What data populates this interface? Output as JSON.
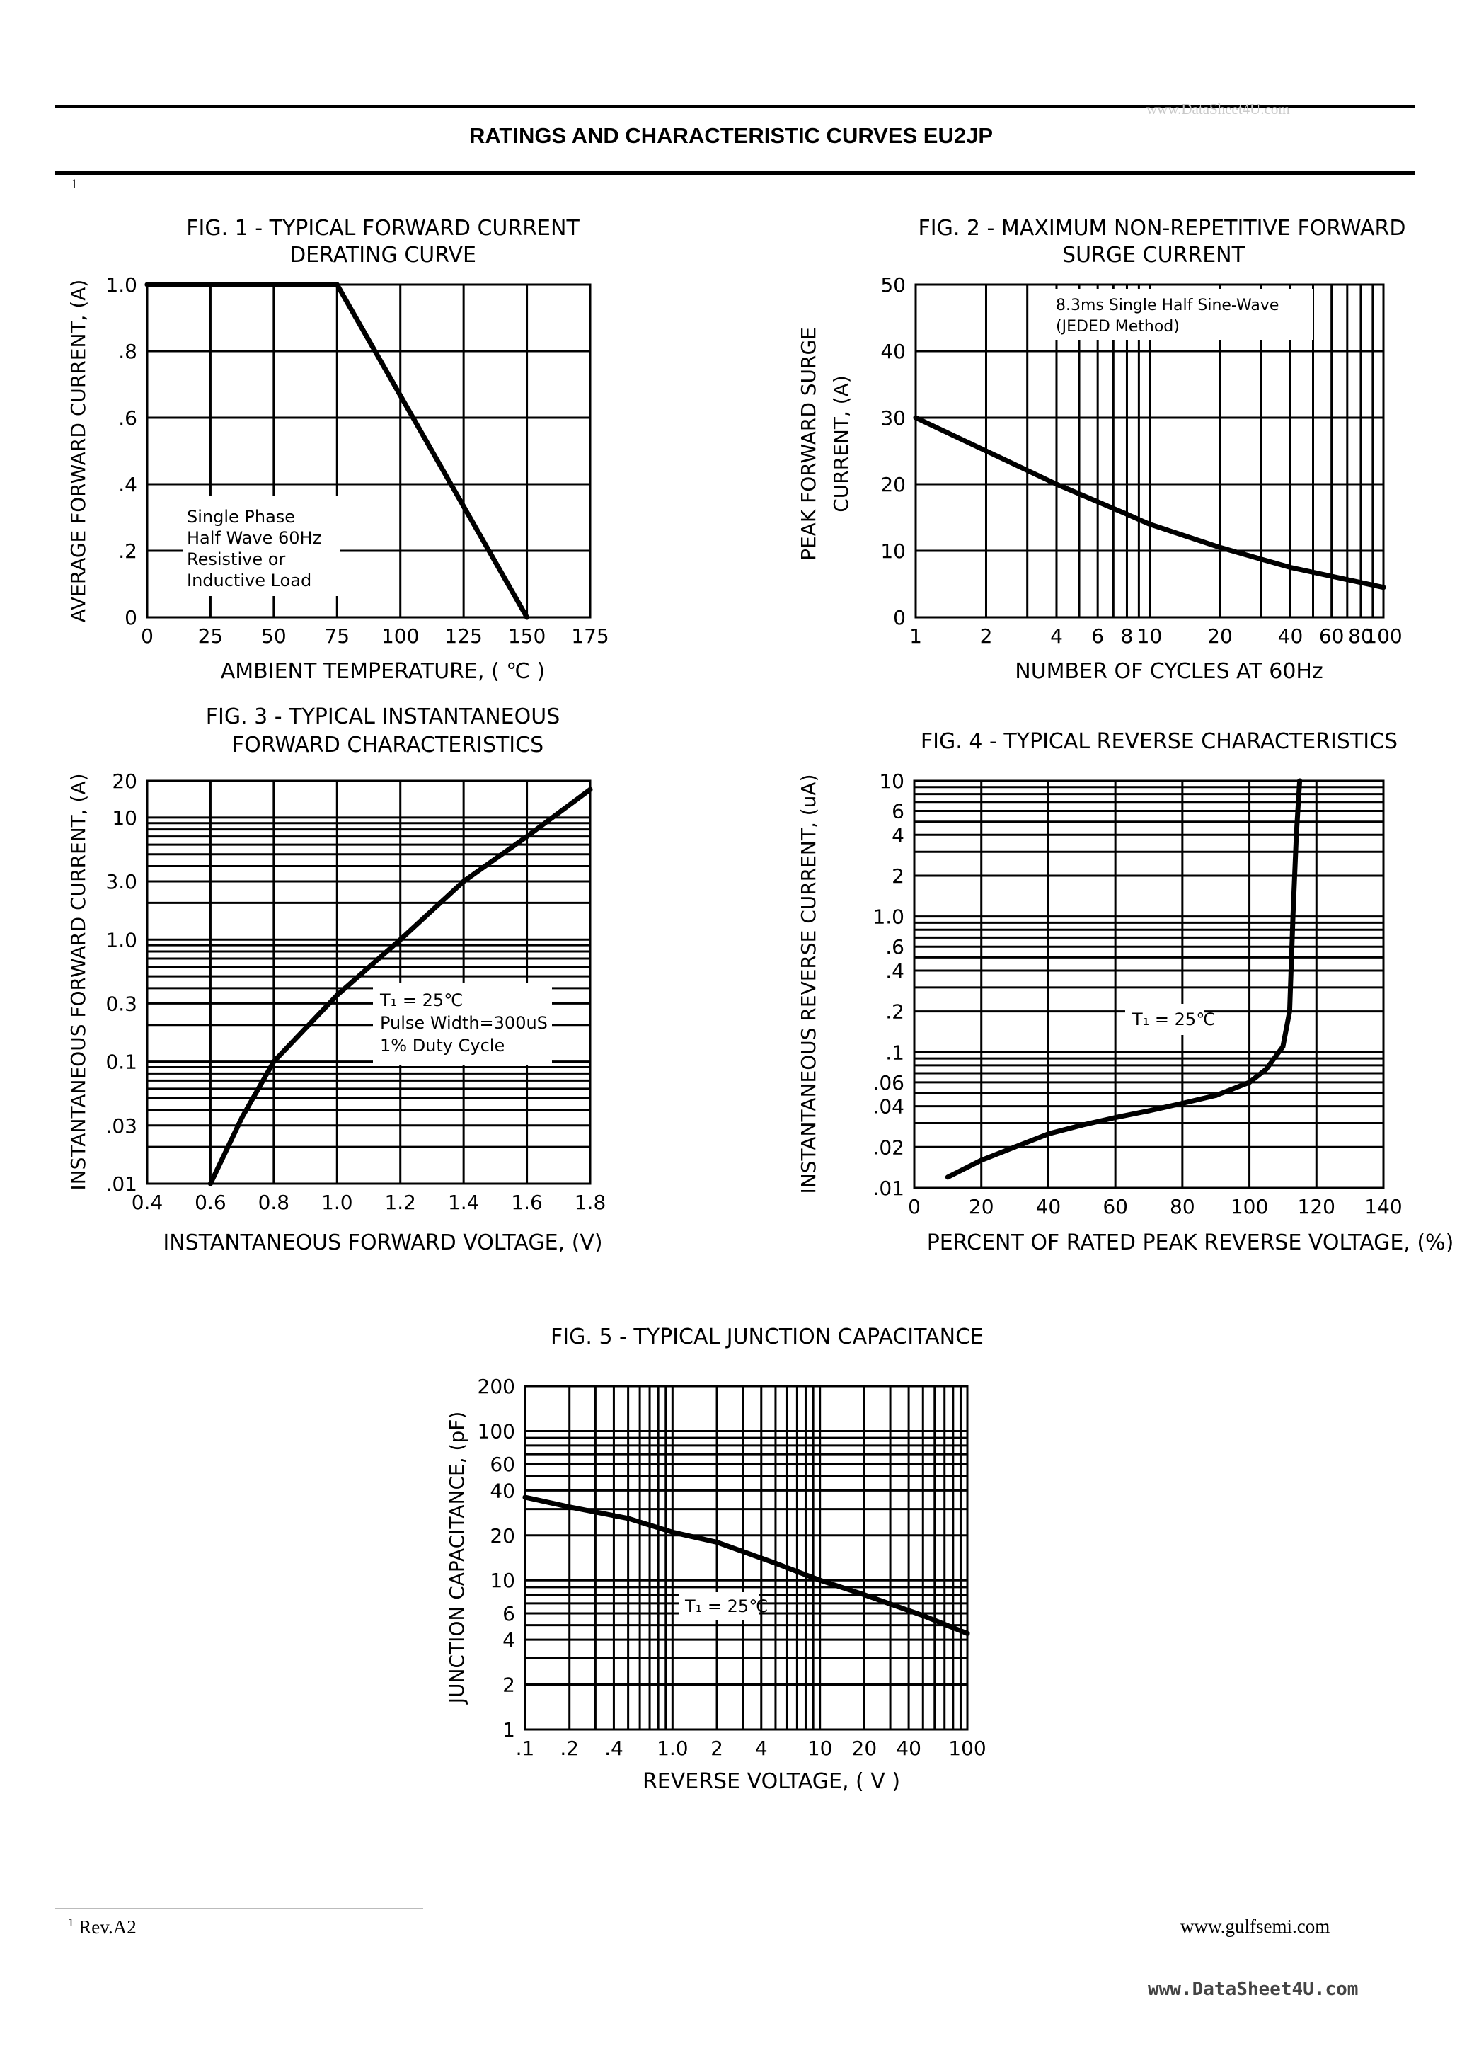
{
  "header": {
    "title": "RATINGS AND CHARACTERISTIC CURVES EU2JP",
    "watermark_top": "www.DataSheet4U.com",
    "superscript_mark": "1"
  },
  "footer": {
    "note_mark": "1",
    "revision": "Rev.A2",
    "website": "www.gulfsemi.com",
    "watermark": "www.DataSheet4U.com"
  },
  "chart_data": [
    {
      "id": "fig1",
      "type": "line",
      "title": "FIG. 1 - TYPICAL FORWARD CURRENT",
      "subtitle": "DERATING CURVE",
      "xlabel": "AMBIENT TEMPERATURE, ( ℃ )",
      "ylabel": "AVERAGE FORWARD CURRENT, (A)",
      "x_scale": "linear",
      "y_scale": "linear",
      "xlim": [
        0,
        175
      ],
      "ylim": [
        0,
        1.0
      ],
      "x_ticks": [
        0,
        25,
        50,
        75,
        100,
        125,
        150,
        175
      ],
      "x_tick_labels": [
        "0",
        "25",
        "50",
        "75",
        "100",
        "125",
        "150",
        "175"
      ],
      "y_ticks": [
        0,
        0.2,
        0.4,
        0.6,
        0.8,
        1.0
      ],
      "y_tick_labels": [
        "0",
        ".2",
        ".4",
        ".6",
        ".8",
        "1.0"
      ],
      "x_grid": [
        0,
        25,
        50,
        75,
        100,
        125,
        150,
        175
      ],
      "y_grid": [
        0,
        0.2,
        0.4,
        0.6,
        0.8,
        1.0
      ],
      "annotation": [
        "Single Phase",
        "Half Wave 60Hz",
        "Resistive or",
        "Inductive Load"
      ],
      "series": [
        {
          "x": [
            0,
            75,
            150
          ],
          "y": [
            1.0,
            1.0,
            0
          ]
        }
      ]
    },
    {
      "id": "fig2",
      "type": "line",
      "title": "FIG. 2 - MAXIMUM NON-REPETITIVE FORWARD",
      "subtitle": "SURGE CURRENT",
      "xlabel": "NUMBER OF CYCLES AT 60Hz",
      "ylabel": "PEAK FORWARD SURGE",
      "ylabel2": "CURRENT, (A)",
      "x_scale": "log",
      "y_scale": "linear",
      "xlim": [
        1,
        100
      ],
      "ylim": [
        0,
        50
      ],
      "x_ticks": [
        1,
        2,
        4,
        6,
        8,
        10,
        20,
        40,
        60,
        80,
        100
      ],
      "x_tick_labels": [
        "1",
        "2",
        "4",
        "6",
        "8",
        "10",
        "20",
        "40",
        "60",
        "80",
        "100"
      ],
      "y_ticks": [
        0,
        10,
        20,
        30,
        40,
        50
      ],
      "y_tick_labels": [
        "0",
        "10",
        "20",
        "30",
        "40",
        "50"
      ],
      "x_grid": [
        1,
        2,
        3,
        4,
        5,
        6,
        7,
        8,
        9,
        10,
        20,
        30,
        40,
        50,
        60,
        70,
        80,
        90,
        100
      ],
      "y_grid": [
        0,
        10,
        20,
        30,
        40,
        50
      ],
      "annotation": [
        "8.3ms Single Half Sine-Wave",
        "(JEDED Method)"
      ],
      "series": [
        {
          "x": [
            1,
            2,
            4,
            8,
            10,
            20,
            40,
            100
          ],
          "y": [
            30,
            25,
            20,
            15.5,
            14,
            10.5,
            7.5,
            4.5
          ]
        }
      ]
    },
    {
      "id": "fig3",
      "type": "line",
      "title": "FIG. 3 - TYPICAL INSTANTANEOUS",
      "subtitle": "FORWARD CHARACTERISTICS",
      "xlabel": "INSTANTANEOUS FORWARD VOLTAGE, (V)",
      "ylabel": "INSTANTANEOUS FORWARD CURRENT, (A)",
      "x_scale": "linear",
      "y_scale": "log",
      "xlim": [
        0.4,
        1.8
      ],
      "ylim": [
        0.01,
        20
      ],
      "x_ticks": [
        0.4,
        0.6,
        0.8,
        1.0,
        1.2,
        1.4,
        1.6,
        1.8
      ],
      "x_tick_labels": [
        "0.4",
        "0.6",
        "0.8",
        "1.0",
        "1.2",
        "1.4",
        "1.6",
        "1.8"
      ],
      "y_ticks": [
        0.01,
        0.03,
        0.1,
        0.3,
        1.0,
        3.0,
        10,
        20
      ],
      "y_tick_labels": [
        ".01",
        ".03",
        "0.1",
        "0.3",
        "1.0",
        "3.0",
        "10",
        "20"
      ],
      "x_grid": [
        0.4,
        0.6,
        0.8,
        1.0,
        1.2,
        1.4,
        1.6,
        1.8
      ],
      "y_grid": [
        0.01,
        0.02,
        0.03,
        0.04,
        0.05,
        0.06,
        0.07,
        0.08,
        0.09,
        0.1,
        0.2,
        0.3,
        0.4,
        0.5,
        0.6,
        0.7,
        0.8,
        0.9,
        1,
        2,
        3,
        4,
        5,
        6,
        7,
        8,
        9,
        10,
        20
      ],
      "annotation": [
        "T₁ = 25℃",
        "Pulse Width=300uS",
        "1% Duty Cycle"
      ],
      "series": [
        {
          "x": [
            0.6,
            0.7,
            0.8,
            1.0,
            1.2,
            1.4,
            1.6,
            1.8
          ],
          "y": [
            0.01,
            0.035,
            0.1,
            0.35,
            1.0,
            3.0,
            7.0,
            17
          ]
        }
      ]
    },
    {
      "id": "fig4",
      "type": "line",
      "title": "FIG. 4 - TYPICAL REVERSE CHARACTERISTICS",
      "xlabel": "PERCENT OF RATED PEAK REVERSE VOLTAGE, (%)",
      "ylabel": "INSTANTANEOUS REVERSE CURRENT, (uA)",
      "x_scale": "linear",
      "y_scale": "log",
      "xlim": [
        0,
        140
      ],
      "ylim": [
        0.01,
        10
      ],
      "x_ticks": [
        0,
        20,
        40,
        60,
        80,
        100,
        120,
        140
      ],
      "x_tick_labels": [
        "0",
        "20",
        "40",
        "60",
        "80",
        "100",
        "120",
        "140"
      ],
      "y_ticks": [
        0.01,
        0.02,
        0.04,
        0.06,
        0.1,
        0.2,
        0.4,
        0.6,
        1.0,
        2,
        4,
        6,
        10
      ],
      "y_tick_labels": [
        ".01",
        ".02",
        ".04",
        ".06",
        ".1",
        ".2",
        ".4",
        ".6",
        "1.0",
        "2",
        "4",
        "6",
        "10"
      ],
      "x_grid": [
        0,
        20,
        40,
        60,
        80,
        100,
        120,
        140
      ],
      "y_grid": [
        0.01,
        0.02,
        0.03,
        0.04,
        0.05,
        0.06,
        0.07,
        0.08,
        0.09,
        0.1,
        0.2,
        0.3,
        0.4,
        0.5,
        0.6,
        0.7,
        0.8,
        0.9,
        1,
        2,
        3,
        4,
        5,
        6,
        7,
        8,
        9,
        10
      ],
      "annotation": [
        "T₁ = 25℃"
      ],
      "series": [
        {
          "x": [
            10,
            20,
            30,
            40,
            50,
            60,
            70,
            80,
            90,
            100,
            105,
            110,
            112,
            113,
            114,
            115
          ],
          "y": [
            0.012,
            0.016,
            0.02,
            0.025,
            0.029,
            0.033,
            0.037,
            0.042,
            0.048,
            0.06,
            0.075,
            0.11,
            0.2,
            1.0,
            4.0,
            10
          ]
        }
      ]
    },
    {
      "id": "fig5",
      "type": "line",
      "title": "FIG. 5 - TYPICAL JUNCTION CAPACITANCE",
      "xlabel": "REVERSE VOLTAGE, ( V )",
      "ylabel": "JUNCTION CAPACITANCE, (pF)",
      "x_scale": "log",
      "y_scale": "log",
      "xlim": [
        0.1,
        100
      ],
      "ylim": [
        1,
        200
      ],
      "x_ticks": [
        0.1,
        0.2,
        0.4,
        1.0,
        2,
        4,
        10,
        20,
        40,
        100
      ],
      "x_tick_labels": [
        ".1",
        ".2",
        ".4",
        "1.0",
        "2",
        "4",
        "10",
        "20",
        "40",
        "100"
      ],
      "y_ticks": [
        1,
        2,
        4,
        6,
        10,
        20,
        40,
        60,
        100,
        200
      ],
      "y_tick_labels": [
        "1",
        "2",
        "4",
        "6",
        "10",
        "20",
        "40",
        "60",
        "100",
        "200"
      ],
      "x_grid": [
        0.1,
        0.2,
        0.3,
        0.4,
        0.5,
        0.6,
        0.7,
        0.8,
        0.9,
        1,
        2,
        3,
        4,
        5,
        6,
        7,
        8,
        9,
        10,
        20,
        30,
        40,
        50,
        60,
        70,
        80,
        90,
        100
      ],
      "y_grid": [
        1,
        2,
        3,
        4,
        5,
        6,
        7,
        8,
        9,
        10,
        20,
        30,
        40,
        50,
        60,
        70,
        80,
        90,
        100,
        200
      ],
      "annotation": [
        "T₁ = 25℃"
      ],
      "series": [
        {
          "x": [
            0.1,
            0.2,
            0.5,
            1,
            2,
            5,
            10,
            20,
            50,
            100
          ],
          "y": [
            36,
            31,
            26,
            21,
            18,
            13,
            10,
            8,
            5.8,
            4.4
          ]
        }
      ]
    }
  ]
}
